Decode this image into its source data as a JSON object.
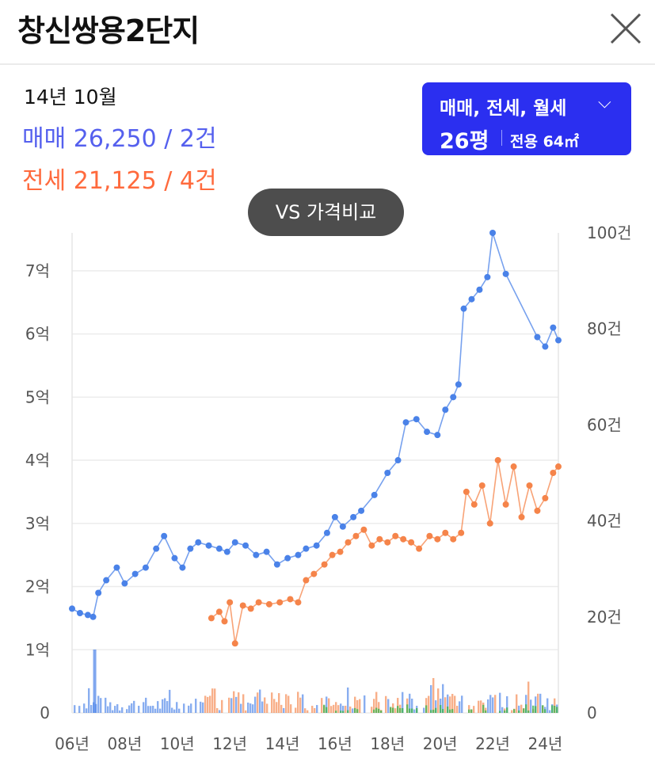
{
  "header": {
    "title": "창신쌍용2단지"
  },
  "summary": {
    "date": "14년 10월",
    "sale": "매매 26,250 / 2건",
    "jeonse": "전세 21,125 / 4건"
  },
  "filter": {
    "types": "매매, 전세, 월세",
    "size": "26평",
    "area": "전용 64㎡"
  },
  "compare_button": "VS 가격비교",
  "colors": {
    "sale": "#4a82e8",
    "jeonse": "#f5844a",
    "volume_green": "#3cb34a",
    "accent": "#2b2ff0"
  },
  "chart_data": {
    "type": "line",
    "x_axis": {
      "ticks": [
        "06년",
        "08년",
        "10년",
        "12년",
        "14년",
        "16년",
        "18년",
        "20년",
        "22년",
        "24년"
      ],
      "range": [
        2006,
        2024.5
      ]
    },
    "y_left": {
      "ticks": [
        "0",
        "1억",
        "2억",
        "3억",
        "4억",
        "5억",
        "6억",
        "7억"
      ],
      "range": [
        0,
        7.6
      ]
    },
    "y_right": {
      "ticks": [
        "0",
        "20건",
        "40건",
        "60건",
        "80건",
        "100건"
      ],
      "range": [
        0,
        100
      ]
    },
    "grid": true,
    "series": [
      {
        "key": "sale",
        "color": "#4a82e8",
        "points": [
          [
            2006.0,
            1.65
          ],
          [
            2006.3,
            1.58
          ],
          [
            2006.6,
            1.55
          ],
          [
            2006.8,
            1.52
          ],
          [
            2007.0,
            1.9
          ],
          [
            2007.3,
            2.1
          ],
          [
            2007.7,
            2.3
          ],
          [
            2008.0,
            2.05
          ],
          [
            2008.4,
            2.2
          ],
          [
            2008.8,
            2.3
          ],
          [
            2009.2,
            2.6
          ],
          [
            2009.5,
            2.8
          ],
          [
            2009.9,
            2.45
          ],
          [
            2010.2,
            2.3
          ],
          [
            2010.5,
            2.6
          ],
          [
            2010.8,
            2.7
          ],
          [
            2011.2,
            2.65
          ],
          [
            2011.6,
            2.6
          ],
          [
            2011.9,
            2.55
          ],
          [
            2012.2,
            2.7
          ],
          [
            2012.6,
            2.65
          ],
          [
            2013.0,
            2.5
          ],
          [
            2013.4,
            2.55
          ],
          [
            2013.8,
            2.35
          ],
          [
            2014.2,
            2.45
          ],
          [
            2014.6,
            2.5
          ],
          [
            2014.9,
            2.6
          ],
          [
            2015.3,
            2.65
          ],
          [
            2015.7,
            2.85
          ],
          [
            2016.0,
            3.1
          ],
          [
            2016.3,
            2.95
          ],
          [
            2016.7,
            3.1
          ],
          [
            2017.0,
            3.2
          ],
          [
            2017.5,
            3.45
          ],
          [
            2018.0,
            3.8
          ],
          [
            2018.4,
            4.0
          ],
          [
            2018.7,
            4.6
          ],
          [
            2019.1,
            4.65
          ],
          [
            2019.5,
            4.45
          ],
          [
            2019.9,
            4.4
          ],
          [
            2020.2,
            4.8
          ],
          [
            2020.5,
            5.0
          ],
          [
            2020.7,
            5.2
          ],
          [
            2020.9,
            6.4
          ],
          [
            2021.2,
            6.55
          ],
          [
            2021.5,
            6.7
          ],
          [
            2021.8,
            6.9
          ],
          [
            2022.0,
            7.6
          ],
          [
            2022.5,
            6.95
          ],
          [
            2023.7,
            5.95
          ],
          [
            2024.0,
            5.8
          ],
          [
            2024.3,
            6.1
          ],
          [
            2024.5,
            5.9
          ]
        ]
      },
      {
        "key": "jeonse",
        "color": "#f5844a",
        "points": [
          [
            2011.3,
            1.5
          ],
          [
            2011.6,
            1.6
          ],
          [
            2011.8,
            1.45
          ],
          [
            2012.0,
            1.75
          ],
          [
            2012.2,
            1.1
          ],
          [
            2012.5,
            1.7
          ],
          [
            2012.8,
            1.65
          ],
          [
            2013.1,
            1.75
          ],
          [
            2013.5,
            1.72
          ],
          [
            2013.9,
            1.75
          ],
          [
            2014.3,
            1.8
          ],
          [
            2014.6,
            1.75
          ],
          [
            2014.9,
            2.1
          ],
          [
            2015.2,
            2.2
          ],
          [
            2015.6,
            2.35
          ],
          [
            2015.9,
            2.5
          ],
          [
            2016.2,
            2.55
          ],
          [
            2016.5,
            2.7
          ],
          [
            2016.8,
            2.8
          ],
          [
            2017.1,
            2.9
          ],
          [
            2017.4,
            2.65
          ],
          [
            2017.7,
            2.75
          ],
          [
            2018.0,
            2.7
          ],
          [
            2018.3,
            2.8
          ],
          [
            2018.6,
            2.75
          ],
          [
            2018.9,
            2.7
          ],
          [
            2019.2,
            2.6
          ],
          [
            2019.6,
            2.8
          ],
          [
            2019.9,
            2.75
          ],
          [
            2020.2,
            2.85
          ],
          [
            2020.5,
            2.75
          ],
          [
            2020.8,
            2.85
          ],
          [
            2021.0,
            3.5
          ],
          [
            2021.3,
            3.3
          ],
          [
            2021.6,
            3.6
          ],
          [
            2021.9,
            3.0
          ],
          [
            2022.2,
            4.0
          ],
          [
            2022.5,
            3.3
          ],
          [
            2022.8,
            3.9
          ],
          [
            2023.1,
            3.1
          ],
          [
            2023.4,
            3.6
          ],
          [
            2023.7,
            3.2
          ],
          [
            2024.0,
            3.4
          ],
          [
            2024.3,
            3.8
          ],
          [
            2024.5,
            3.9
          ]
        ]
      }
    ]
  }
}
